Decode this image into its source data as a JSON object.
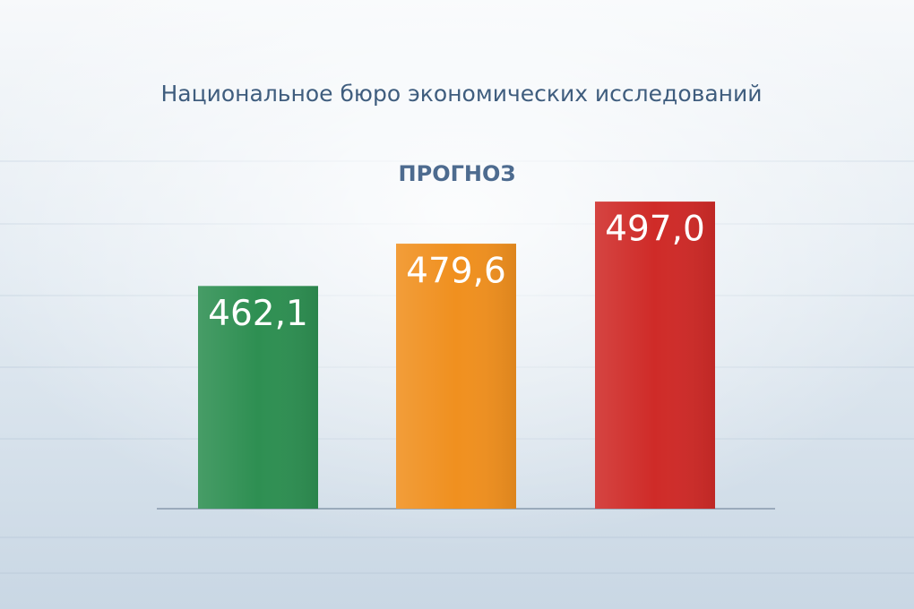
{
  "chart_data": {
    "type": "bar",
    "title": "Национальное бюро экономических исследований",
    "subtitle": "ПРОГНОЗ",
    "categories": [
      null,
      null,
      null
    ],
    "values": [
      462.1,
      479.6,
      497.0
    ],
    "value_labels": [
      "462,1",
      "479,6",
      "497,0"
    ],
    "colors": [
      "#2e8f52",
      "#f0901f",
      "#cf2b28"
    ],
    "ylim": [
      370,
      510
    ]
  }
}
